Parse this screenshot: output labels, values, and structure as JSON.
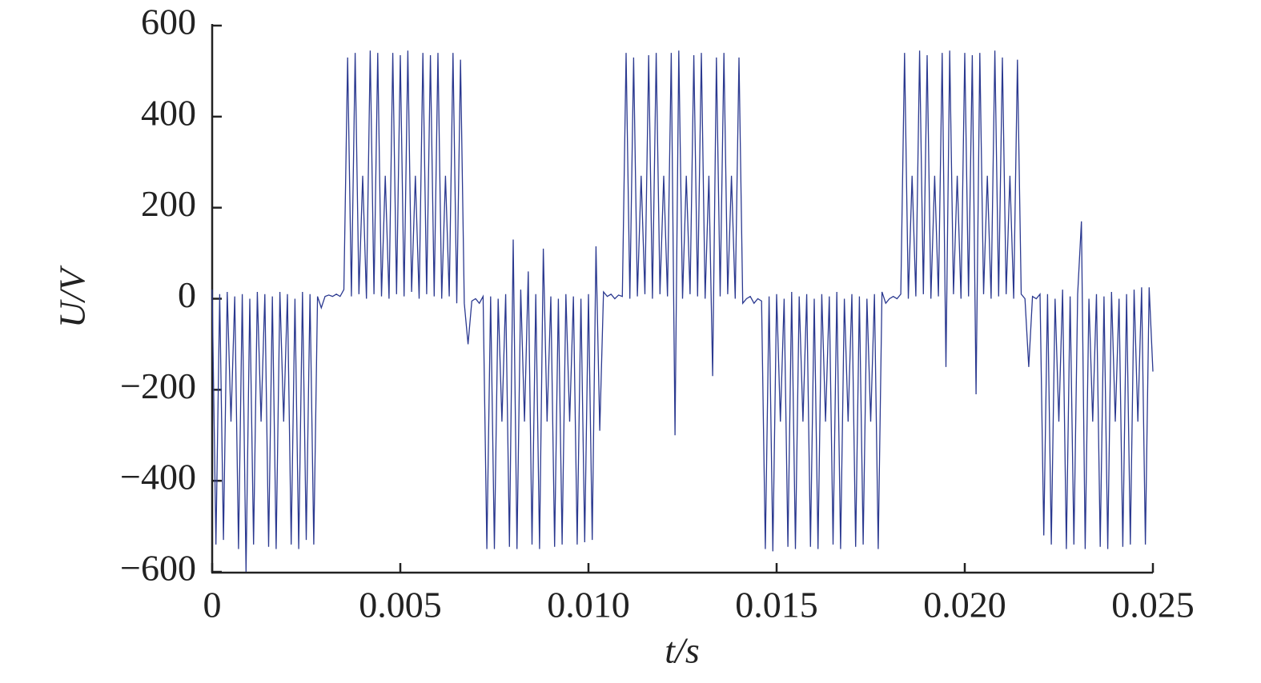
{
  "chart_data": {
    "type": "line",
    "xlabel": "t/s",
    "ylabel": "U/V",
    "color": "#2b3990",
    "xlim": [
      0,
      0.025
    ],
    "xticks": [
      0,
      0.005,
      {
        "value": 0.01,
        "label": "0.010"
      },
      0.015,
      {
        "value": 0.02,
        "label": "0.020"
      },
      0.025
    ],
    "ylim": [
      -600,
      600
    ],
    "yticks": [
      {
        "value": -600,
        "label": "−600"
      },
      {
        "value": -400,
        "label": "−400"
      },
      {
        "value": -200,
        "label": "−200"
      },
      0,
      200,
      400,
      600
    ],
    "x": [
      0,
      0.0001,
      0.0002,
      0.0003,
      0.0004,
      0.0005,
      0.0006,
      0.0007,
      0.0008,
      0.0009,
      0.001,
      0.0011,
      0.0012,
      0.0013,
      0.0014,
      0.0015,
      0.0016,
      0.0017,
      0.0018,
      0.0019,
      0.002,
      0.0021,
      0.0022,
      0.0023,
      0.0024,
      0.0025,
      0.0026,
      0.0027,
      0.0028,
      0.0029,
      0.003,
      0.0031,
      0.0032,
      0.0033,
      0.0034,
      0.0035,
      0.0036,
      0.0037,
      0.0038,
      0.0039,
      0.004,
      0.0041,
      0.0042,
      0.0043,
      0.0044,
      0.0045,
      0.0046,
      0.0047,
      0.0048,
      0.0049,
      0.005,
      0.0051,
      0.0052,
      0.0053,
      0.0054,
      0.0055,
      0.0056,
      0.0057,
      0.0058,
      0.0059,
      0.006,
      0.0061,
      0.0062,
      0.0063,
      0.0064,
      0.0065,
      0.0066,
      0.0067,
      0.0068,
      0.0069,
      0.007,
      0.0071,
      0.0072,
      0.0073,
      0.0074,
      0.0075,
      0.0076,
      0.0077,
      0.0078,
      0.0079,
      0.008,
      0.0081,
      0.0082,
      0.0083,
      0.0084,
      0.0085,
      0.0086,
      0.0087,
      0.0088,
      0.0089,
      0.009,
      0.0091,
      0.0092,
      0.0093,
      0.0094,
      0.0095,
      0.0096,
      0.0097,
      0.0098,
      0.0099,
      0.01,
      0.0101,
      0.0102,
      0.0103,
      0.0104,
      0.0105,
      0.0106,
      0.0107,
      0.0108,
      0.0109,
      0.011,
      0.0111,
      0.0112,
      0.0113,
      0.0114,
      0.0115,
      0.0116,
      0.0117,
      0.0118,
      0.0119,
      0.012,
      0.0121,
      0.0122,
      0.0123,
      0.0124,
      0.0125,
      0.0126,
      0.0127,
      0.0128,
      0.0129,
      0.013,
      0.0131,
      0.0132,
      0.0133,
      0.0134,
      0.0135,
      0.0136,
      0.0137,
      0.0138,
      0.0139,
      0.014,
      0.0141,
      0.0142,
      0.0143,
      0.0144,
      0.0145,
      0.0146,
      0.0147,
      0.0148,
      0.0149,
      0.015,
      0.0151,
      0.0152,
      0.0153,
      0.0154,
      0.0155,
      0.0156,
      0.0157,
      0.0158,
      0.0159,
      0.016,
      0.0161,
      0.0162,
      0.0163,
      0.0164,
      0.0165,
      0.0166,
      0.0167,
      0.0168,
      0.0169,
      0.017,
      0.0171,
      0.0172,
      0.0173,
      0.0174,
      0.0175,
      0.0176,
      0.0177,
      0.0178,
      0.0179,
      0.018,
      0.0181,
      0.0182,
      0.0183,
      0.0184,
      0.0185,
      0.0186,
      0.0187,
      0.0188,
      0.0189,
      0.019,
      0.0191,
      0.0192,
      0.0193,
      0.0194,
      0.0195,
      0.0196,
      0.0197,
      0.0198,
      0.0199,
      0.02,
      0.0201,
      0.0202,
      0.0203,
      0.0204,
      0.0205,
      0.0206,
      0.0207,
      0.0208,
      0.0209,
      0.021,
      0.0211,
      0.0212,
      0.0213,
      0.0214,
      0.0215,
      0.0216,
      0.0217,
      0.0218,
      0.0219,
      0.022,
      0.0221,
      0.0222,
      0.0223,
      0.0224,
      0.0225,
      0.0226,
      0.0227,
      0.0228,
      0.0229,
      0.023,
      0.0231,
      0.0232,
      0.0233,
      0.0234,
      0.0235,
      0.0236,
      0.0237,
      0.0238,
      0.0239,
      0.024,
      0.0241,
      0.0242,
      0.0243,
      0.0244,
      0.0245,
      0.0246,
      0.0247,
      0.0248,
      0.0249,
      0.025
    ],
    "values": [
      20,
      -540,
      10,
      -530,
      15,
      -270,
      5,
      -550,
      10,
      -600,
      0,
      -540,
      15,
      -270,
      10,
      -545,
      5,
      -550,
      15,
      -270,
      10,
      -540,
      0,
      -550,
      15,
      -530,
      10,
      -540,
      5,
      -20,
      5,
      8,
      5,
      10,
      5,
      20,
      530,
      5,
      540,
      10,
      270,
      0,
      545,
      10,
      540,
      5,
      270,
      0,
      540,
      10,
      535,
      5,
      545,
      15,
      270,
      0,
      540,
      10,
      535,
      5,
      540,
      0,
      270,
      5,
      540,
      -10,
      525,
      -10,
      -100,
      -5,
      0,
      -10,
      5,
      -550,
      5,
      -550,
      0,
      -270,
      10,
      -545,
      130,
      -550,
      20,
      -270,
      60,
      -540,
      10,
      -550,
      110,
      -270,
      5,
      -545,
      0,
      -540,
      10,
      -270,
      5,
      -540,
      0,
      -535,
      10,
      -530,
      115,
      -290,
      15,
      5,
      10,
      0,
      8,
      5,
      540,
      0,
      530,
      5,
      270,
      10,
      535,
      0,
      540,
      10,
      270,
      5,
      540,
      -300,
      545,
      0,
      270,
      10,
      535,
      5,
      540,
      0,
      270,
      -170,
      530,
      5,
      540,
      10,
      270,
      0,
      530,
      -10,
      0,
      5,
      -10,
      0,
      -5,
      -550,
      5,
      -555,
      10,
      -270,
      0,
      -545,
      15,
      -550,
      5,
      -270,
      10,
      -545,
      0,
      -550,
      10,
      -270,
      5,
      -540,
      15,
      -550,
      0,
      -270,
      10,
      -545,
      5,
      -540,
      0,
      -270,
      10,
      -550,
      15,
      -10,
      0,
      5,
      0,
      10,
      540,
      0,
      270,
      5,
      545,
      10,
      535,
      0,
      270,
      5,
      540,
      -150,
      545,
      10,
      270,
      0,
      540,
      5,
      535,
      -210,
      540,
      10,
      270,
      0,
      545,
      5,
      530,
      10,
      270,
      0,
      525,
      10,
      0,
      -150,
      5,
      0,
      10,
      -520,
      10,
      -540,
      0,
      -270,
      20,
      -550,
      5,
      -540,
      10,
      170,
      -550,
      0,
      -270,
      10,
      -545,
      5,
      -550,
      15,
      -270,
      0,
      -545,
      10,
      -540,
      20,
      -270,
      25,
      -540,
      25,
      -160
    ]
  }
}
